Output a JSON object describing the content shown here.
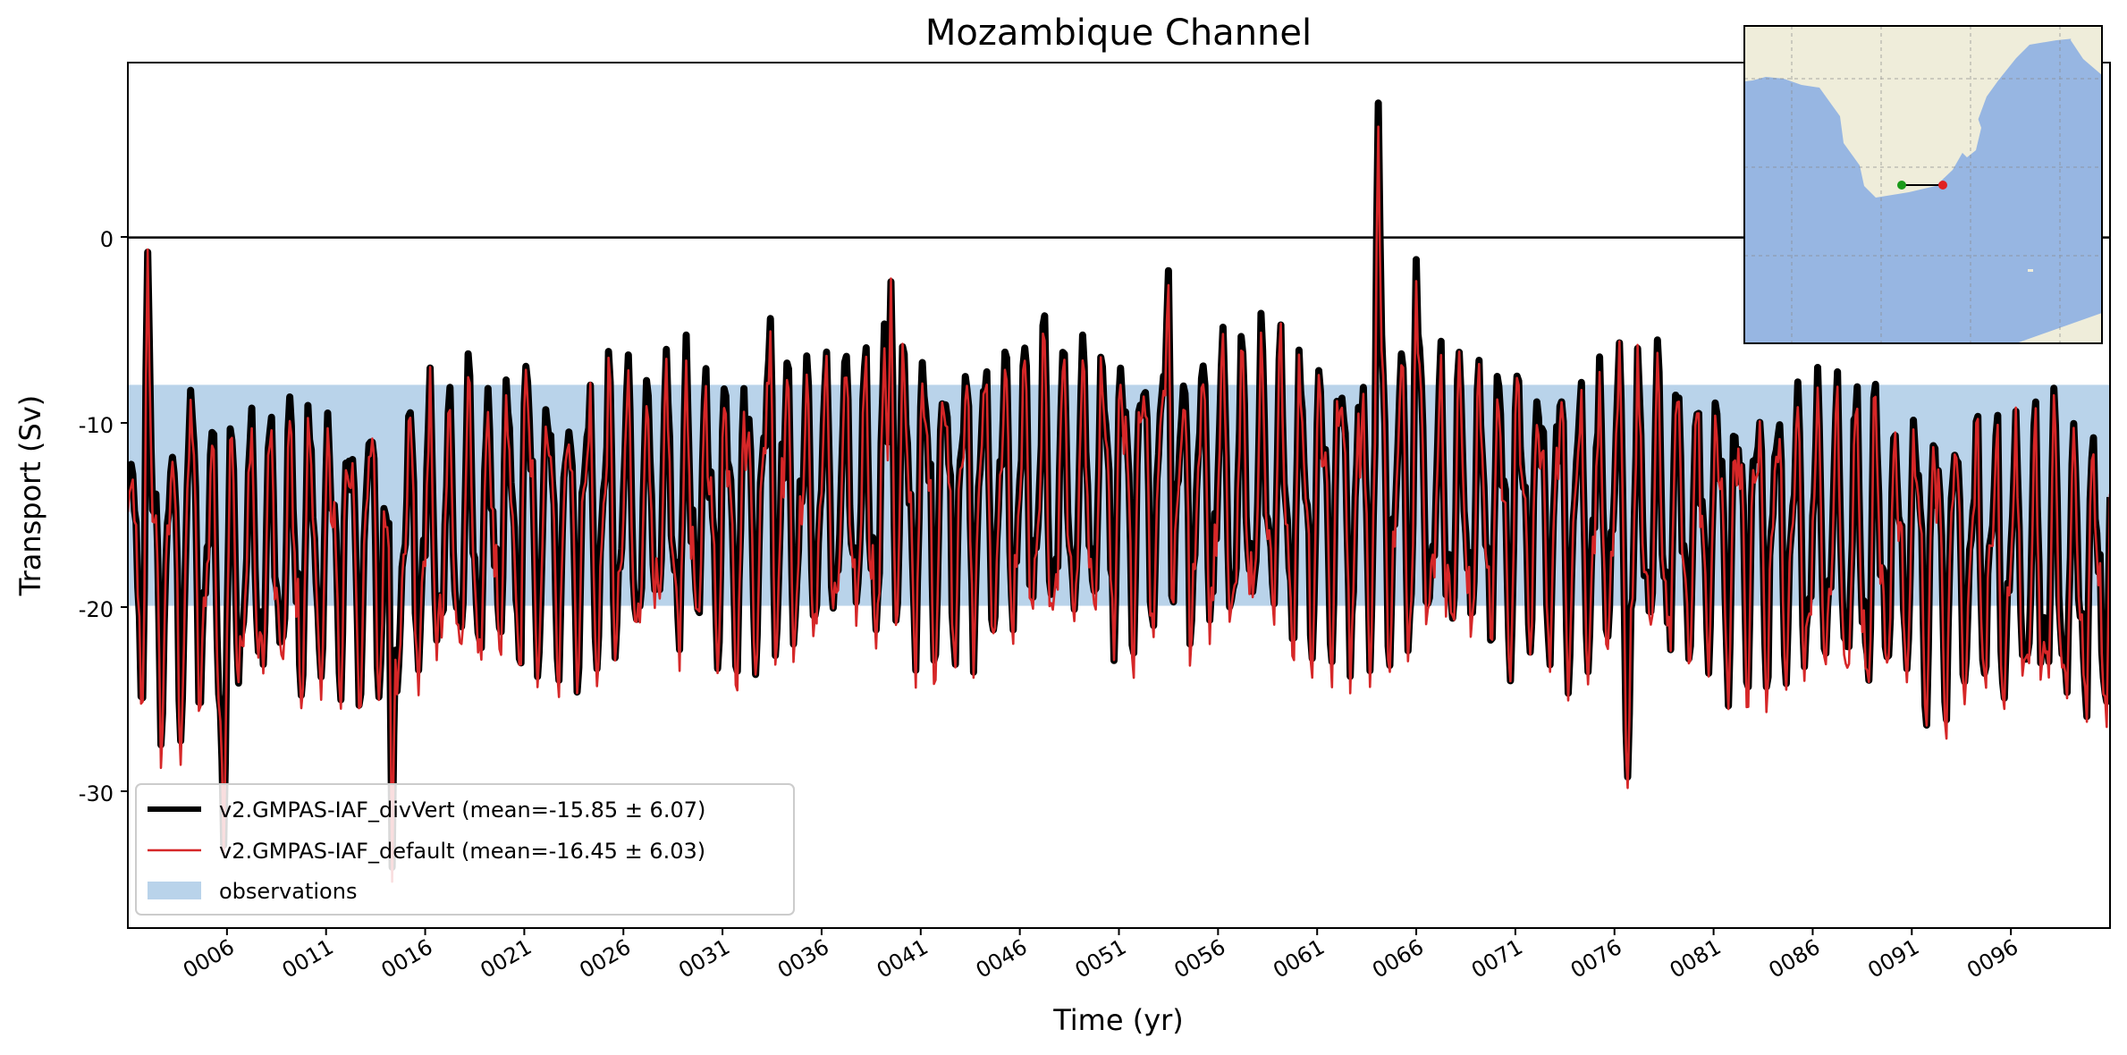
{
  "chart_data": {
    "type": "line",
    "title": "Mozambique Channel",
    "xlabel": "Time (yr)",
    "ylabel": "Transport (Sv)",
    "xlim": [
      1,
      101
    ],
    "ylim": [
      -37.5,
      9.5
    ],
    "x_ticks": [
      "0006",
      "0011",
      "0016",
      "0021",
      "0026",
      "0031",
      "0036",
      "0041",
      "0046",
      "0051",
      "0056",
      "0061",
      "0066",
      "0071",
      "0076",
      "0081",
      "0086",
      "0091",
      "0096"
    ],
    "y_ticks": [
      0,
      -10,
      -20,
      -30
    ],
    "reference_line": 0,
    "observations": {
      "label": "observations",
      "low": -20,
      "high": -8,
      "color": "#b9d3ea"
    },
    "series": [
      {
        "name": "v2.GMPAS-IAF_divVert",
        "mean": -15.85,
        "std": 6.07,
        "color": "#000000",
        "style": "thick",
        "legend": "v2.GMPAS-IAF_divVert (mean=-15.85 ± 6.07)"
      },
      {
        "name": "v2.GMPAS-IAF_default",
        "mean": -16.45,
        "std": 6.03,
        "color": "#d62728",
        "style": "thin",
        "legend": "v2.GMPAS-IAF_default (mean=-16.45 ± 6.03)"
      }
    ],
    "features": [
      {
        "x": 2.0,
        "y": -0.8
      },
      {
        "x": 4.2,
        "y": -8.3
      },
      {
        "x": 21.1,
        "y": -7.0
      },
      {
        "x": 33.4,
        "y": -4.4
      },
      {
        "x": 39.5,
        "y": -2.4
      },
      {
        "x": 53.5,
        "y": -1.8
      },
      {
        "x": 64.1,
        "y": 7.3
      },
      {
        "x": 66.0,
        "y": -1.2
      },
      {
        "x": 76.7,
        "y": -29.3
      },
      {
        "x": 14.3,
        "y": -34.2
      },
      {
        "x": 5.8,
        "y": -33.0
      }
    ],
    "legend_position": "lower-left",
    "inset_map": {
      "description": "southern Africa section",
      "start_marker": "green",
      "end_marker": "red"
    }
  }
}
